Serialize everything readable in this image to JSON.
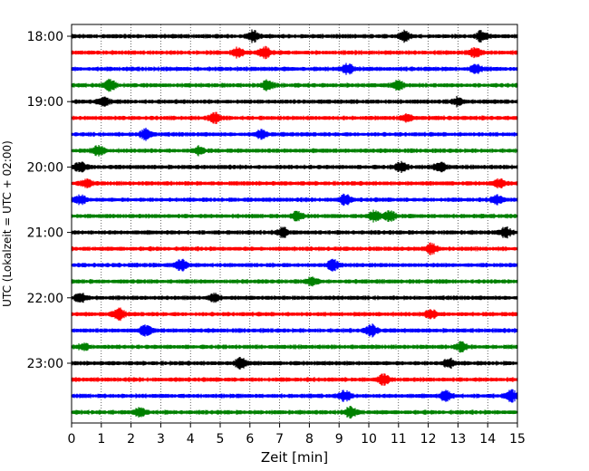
{
  "chart_data": {
    "type": "line",
    "title": "",
    "xlabel": "Zeit  [min]",
    "ylabel": "UTC (Lokalzeit = UTC + 02:00)",
    "xlim": [
      0,
      15
    ],
    "x_ticks": [
      0,
      1,
      2,
      3,
      4,
      5,
      6,
      7,
      8,
      9,
      10,
      11,
      12,
      13,
      14,
      15
    ],
    "x_tick_labels": [
      "0",
      "1",
      "2",
      "3",
      "4",
      "5",
      "6",
      "7",
      "8",
      "9",
      "10",
      "11",
      "12",
      "13",
      "14",
      "15"
    ],
    "y_tick_labels": [
      {
        "label": "18:00",
        "row": 0
      },
      {
        "label": "19:00",
        "row": 4
      },
      {
        "label": "20:00",
        "row": 8
      },
      {
        "label": "21:00",
        "row": 12
      },
      {
        "label": "22:00",
        "row": 16
      },
      {
        "label": "23:00",
        "row": 20
      }
    ],
    "row_interval_minutes": 15,
    "row_start_times": [
      "18:00",
      "18:15",
      "18:30",
      "18:45",
      "19:00",
      "19:15",
      "19:30",
      "19:45",
      "20:00",
      "20:15",
      "20:30",
      "20:45",
      "21:00",
      "21:15",
      "21:30",
      "21:45",
      "22:00",
      "22:15",
      "22:30",
      "22:45",
      "23:00",
      "23:15",
      "23:30",
      "23:45"
    ],
    "color_cycle": [
      "#000000",
      "#ff0000",
      "#0000ff",
      "#008000"
    ],
    "vertical_gridlines": true,
    "gridline_style": "dotted",
    "events": [
      [
        [
          6.1,
          1.0
        ],
        [
          11.2,
          0.9
        ],
        [
          13.8,
          0.9
        ]
      ],
      [
        [
          5.6,
          0.9
        ],
        [
          6.5,
          1.0
        ],
        [
          13.6,
          0.9
        ]
      ],
      [
        [
          9.3,
          0.8
        ],
        [
          13.6,
          0.8
        ]
      ],
      [
        [
          1.3,
          1.0
        ],
        [
          6.6,
          0.9
        ],
        [
          11.0,
          0.8
        ]
      ],
      [
        [
          1.1,
          0.8
        ],
        [
          13.0,
          0.7
        ]
      ],
      [
        [
          4.8,
          0.9
        ],
        [
          11.3,
          0.7
        ]
      ],
      [
        [
          2.5,
          1.0
        ],
        [
          6.4,
          0.7
        ]
      ],
      [
        [
          0.9,
          0.9
        ],
        [
          4.3,
          0.7
        ]
      ],
      [
        [
          0.3,
          0.9
        ],
        [
          11.1,
          0.9
        ],
        [
          12.4,
          1.0
        ]
      ],
      [
        [
          0.5,
          0.7
        ],
        [
          14.4,
          0.7
        ]
      ],
      [
        [
          0.3,
          0.8
        ],
        [
          9.2,
          0.9
        ],
        [
          14.3,
          0.8
        ]
      ],
      [
        [
          7.6,
          0.8
        ],
        [
          10.2,
          1.0
        ],
        [
          10.7,
          0.9
        ]
      ],
      [
        [
          7.1,
          0.8
        ],
        [
          14.6,
          0.9
        ]
      ],
      [
        [
          12.1,
          0.9
        ]
      ],
      [
        [
          3.7,
          1.0
        ],
        [
          8.8,
          0.9
        ]
      ],
      [
        [
          8.1,
          0.7
        ]
      ],
      [
        [
          0.3,
          0.8
        ],
        [
          4.8,
          0.7
        ]
      ],
      [
        [
          1.6,
          1.0
        ],
        [
          12.1,
          0.8
        ]
      ],
      [
        [
          2.5,
          0.9
        ],
        [
          10.1,
          1.0
        ]
      ],
      [
        [
          0.4,
          0.6
        ],
        [
          13.1,
          0.8
        ]
      ],
      [
        [
          5.7,
          1.0
        ],
        [
          12.7,
          0.8
        ]
      ],
      [
        [
          10.5,
          0.9
        ]
      ],
      [
        [
          9.2,
          0.9
        ],
        [
          12.6,
          0.9
        ],
        [
          14.8,
          1.0
        ]
      ],
      [
        [
          2.3,
          0.8
        ],
        [
          9.4,
          1.0
        ]
      ]
    ]
  }
}
